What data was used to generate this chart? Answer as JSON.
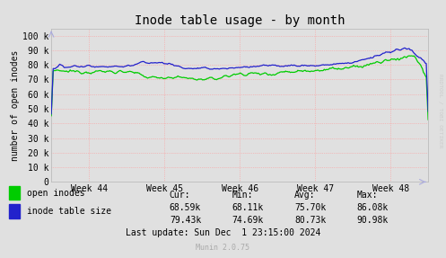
{
  "title": "Inode table usage - by month",
  "ylabel": "number of open inodes",
  "ytick_labels": [
    "0",
    "10 k",
    "20 k",
    "30 k",
    "40 k",
    "50 k",
    "60 k",
    "70 k",
    "80 k",
    "90 k",
    "100 k"
  ],
  "ytick_vals": [
    0,
    10000,
    20000,
    30000,
    40000,
    50000,
    60000,
    70000,
    80000,
    90000,
    100000
  ],
  "xtick_labels": [
    "Week 44",
    "Week 45",
    "Week 46",
    "Week 47",
    "Week 48"
  ],
  "xtick_positions": [
    0.5,
    1.5,
    2.5,
    3.5,
    4.5
  ],
  "ylim": [
    0,
    105000
  ],
  "xlim": [
    0,
    5
  ],
  "bg_color": "#e0e0e0",
  "plot_bg_color": "#e0e0e0",
  "grid_color": "#ff9999",
  "line_open_color": "#00cc00",
  "line_table_color": "#2222cc",
  "legend_label_open": "open inodes",
  "legend_label_table": "inode table size",
  "footer_headers": [
    "Cur:",
    "Min:",
    "Avg:",
    "Max:"
  ],
  "footer_open": [
    "68.59k",
    "68.11k",
    "75.70k",
    "86.08k"
  ],
  "footer_table": [
    "79.43k",
    "74.69k",
    "80.73k",
    "90.98k"
  ],
  "footer_lastupdate": "Last update: Sun Dec  1 23:15:00 2024",
  "munin_version": "Munin 2.0.75",
  "rrdtool_label": "RRDTOOL / TOBI OETIKER",
  "title_fontsize": 10,
  "axis_label_fontsize": 7,
  "tick_fontsize": 7,
  "legend_fontsize": 7,
  "footer_fontsize": 7
}
